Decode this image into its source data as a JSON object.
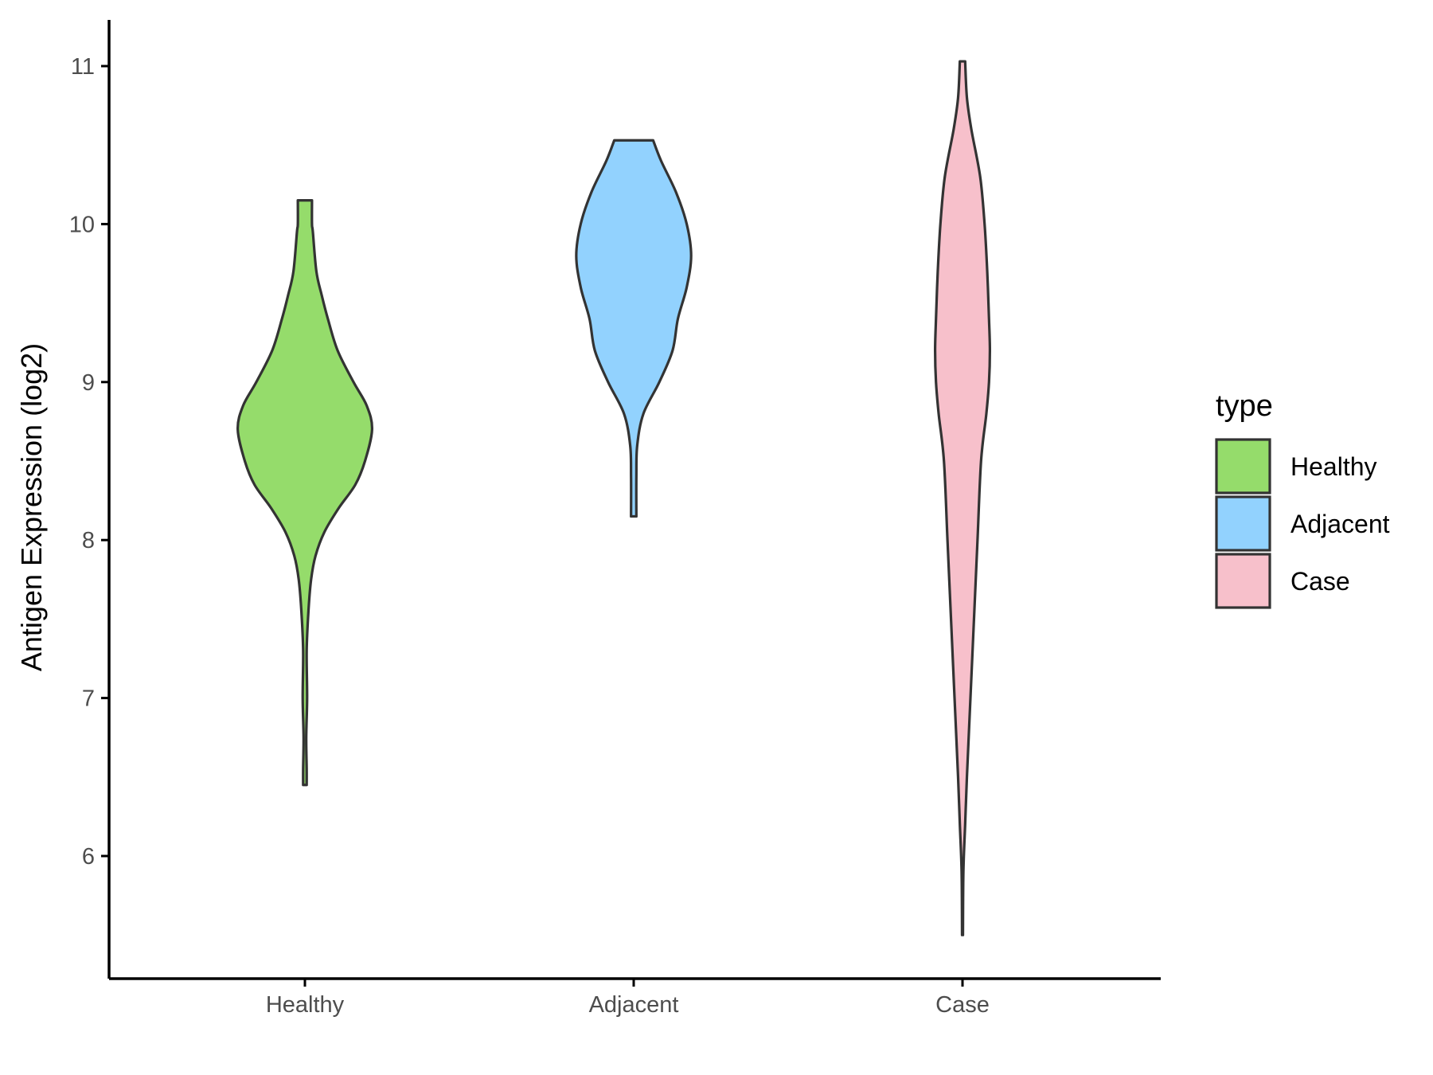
{
  "chart_data": {
    "type": "violin",
    "ylabel": "Antigen Expression (log2)",
    "xlabel": "",
    "ylim": [
      5.3,
      11.3
    ],
    "yticks": [
      6,
      7,
      8,
      9,
      10,
      11
    ],
    "categories": [
      "Healthy",
      "Adjacent",
      "Case"
    ],
    "legend": {
      "title": "type",
      "position": "right"
    },
    "grid": false,
    "series": [
      {
        "name": "Healthy",
        "color": "#95DC6B",
        "min": 6.45,
        "max": 10.15,
        "profile": [
          [
            10.15,
            0.08
          ],
          [
            10.0,
            0.08
          ],
          [
            9.95,
            0.09
          ],
          [
            9.7,
            0.13
          ],
          [
            9.55,
            0.19
          ],
          [
            9.4,
            0.26
          ],
          [
            9.2,
            0.37
          ],
          [
            9.0,
            0.55
          ],
          [
            8.85,
            0.7
          ],
          [
            8.7,
            0.76
          ],
          [
            8.5,
            0.68
          ],
          [
            8.35,
            0.57
          ],
          [
            8.2,
            0.38
          ],
          [
            8.05,
            0.22
          ],
          [
            7.9,
            0.12
          ],
          [
            7.75,
            0.07
          ],
          [
            7.55,
            0.04
          ],
          [
            7.3,
            0.02
          ],
          [
            7.0,
            0.025
          ],
          [
            6.75,
            0.015
          ],
          [
            6.55,
            0.02
          ],
          [
            6.45,
            0.02
          ]
        ]
      },
      {
        "name": "Adjacent",
        "color": "#92D2FE",
        "min": 8.15,
        "max": 10.53,
        "profile": [
          [
            10.53,
            0.22
          ],
          [
            10.4,
            0.31
          ],
          [
            10.2,
            0.48
          ],
          [
            10.0,
            0.6
          ],
          [
            9.8,
            0.65
          ],
          [
            9.6,
            0.6
          ],
          [
            9.4,
            0.5
          ],
          [
            9.2,
            0.44
          ],
          [
            9.0,
            0.29
          ],
          [
            8.8,
            0.11
          ],
          [
            8.6,
            0.04
          ],
          [
            8.4,
            0.03
          ],
          [
            8.15,
            0.03
          ]
        ]
      },
      {
        "name": "Case",
        "color": "#F7C0CB",
        "min": 5.5,
        "max": 11.03,
        "profile": [
          [
            11.03,
            0.03
          ],
          [
            10.8,
            0.05
          ],
          [
            10.6,
            0.1
          ],
          [
            10.3,
            0.2
          ],
          [
            10.0,
            0.25
          ],
          [
            9.7,
            0.28
          ],
          [
            9.4,
            0.3
          ],
          [
            9.2,
            0.31
          ],
          [
            9.0,
            0.3
          ],
          [
            8.8,
            0.27
          ],
          [
            8.5,
            0.21
          ],
          [
            8.0,
            0.17
          ],
          [
            7.5,
            0.13
          ],
          [
            7.0,
            0.09
          ],
          [
            6.5,
            0.05
          ],
          [
            6.2,
            0.03
          ],
          [
            5.9,
            0.01
          ],
          [
            5.5,
            0.005
          ]
        ]
      }
    ]
  }
}
